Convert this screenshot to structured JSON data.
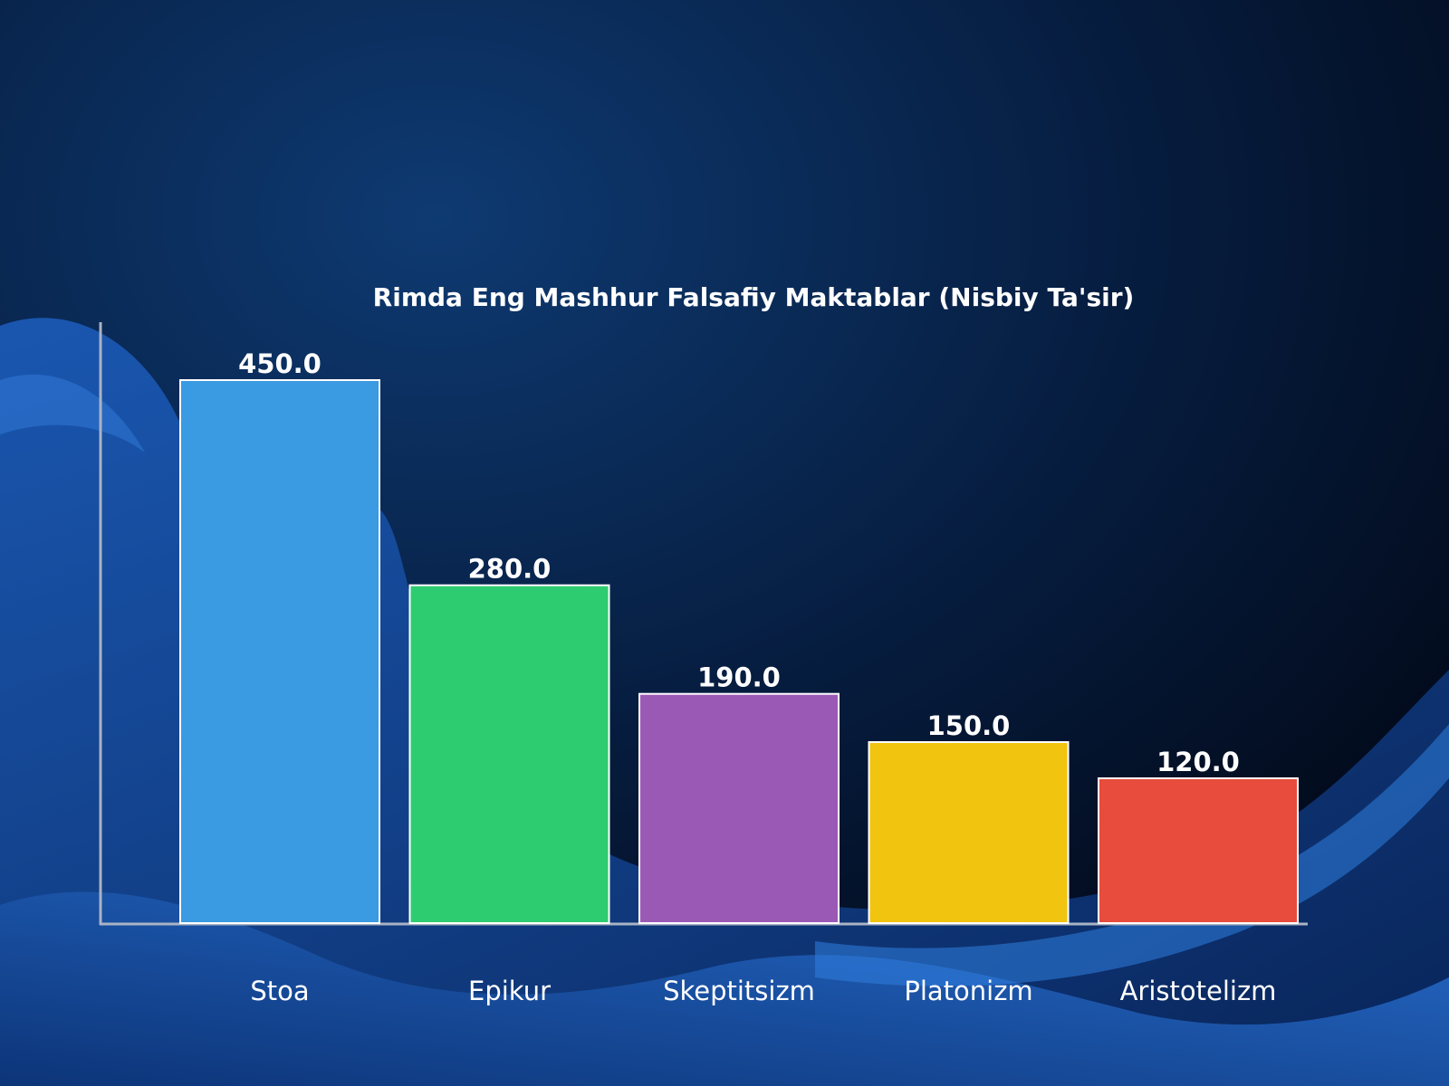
{
  "chart_data": {
    "type": "bar",
    "title": "Rimda Eng Mashhur Falsafiy Maktablar (Nisbiy Ta'sir)",
    "categories": [
      "Stoa",
      "Epikur",
      "Skeptitsizm",
      "Platonizm",
      "Aristotelizm"
    ],
    "values": [
      450.0,
      280.0,
      190.0,
      150.0,
      120.0
    ],
    "value_labels": [
      "450.0",
      "280.0",
      "190.0",
      "150.0",
      "120.0"
    ],
    "colors": [
      "#3a9ae2",
      "#2ecc71",
      "#9b59b6",
      "#f1c40f",
      "#e74c3c"
    ],
    "xlabel": "",
    "ylabel": "",
    "ylim": [
      0,
      500
    ],
    "grid": false,
    "legend": "none"
  }
}
